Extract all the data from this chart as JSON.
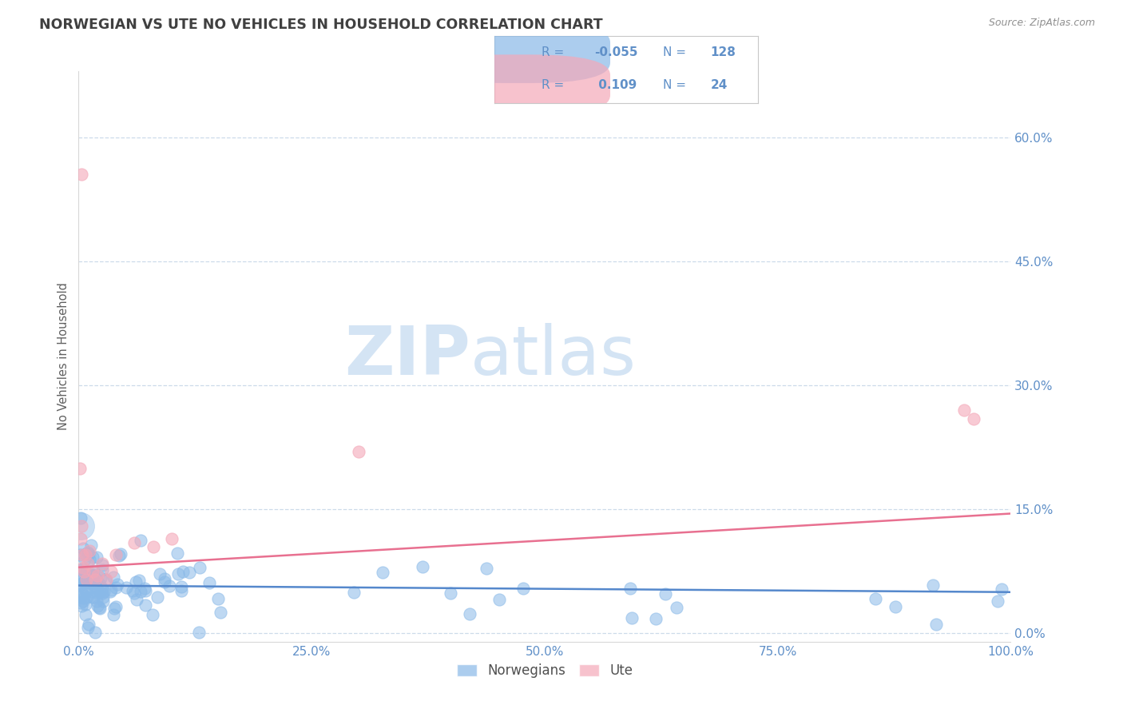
{
  "title": "NORWEGIAN VS UTE NO VEHICLES IN HOUSEHOLD CORRELATION CHART",
  "source_text": "Source: ZipAtlas.com",
  "ylabel": "No Vehicles in Household",
  "xlim": [
    0.0,
    1.0
  ],
  "ylim": [
    -0.01,
    0.68
  ],
  "yticks": [
    0.0,
    0.15,
    0.3,
    0.45,
    0.6
  ],
  "ytick_labels": [
    "0.0%",
    "15.0%",
    "30.0%",
    "45.0%",
    "60.0%"
  ],
  "xticks": [
    0.0,
    0.25,
    0.5,
    0.75,
    1.0
  ],
  "xtick_labels": [
    "0.0%",
    "25.0%",
    "50.0%",
    "75.0%",
    "100.0%"
  ],
  "blue_color": "#89b9e8",
  "pink_color": "#f4a8b8",
  "blue_line_color": "#5588cc",
  "pink_line_color": "#e87090",
  "title_color": "#404040",
  "axis_tick_color": "#6090c8",
  "watermark_zip": "ZIP",
  "watermark_atlas": "atlas",
  "watermark_color": "#d4e4f4",
  "legend_R_color": "#6090c8",
  "legend_N_color": "#6090c8",
  "legend_R_blue": "-0.055",
  "legend_N_blue": "128",
  "legend_R_pink": "0.109",
  "legend_N_pink": "24",
  "blue_line_slope": -0.008,
  "blue_line_intercept": 0.058,
  "pink_line_slope": 0.065,
  "pink_line_intercept": 0.08,
  "background_color": "#ffffff",
  "grid_color": "#c8d8e8",
  "source_color": "#909090"
}
